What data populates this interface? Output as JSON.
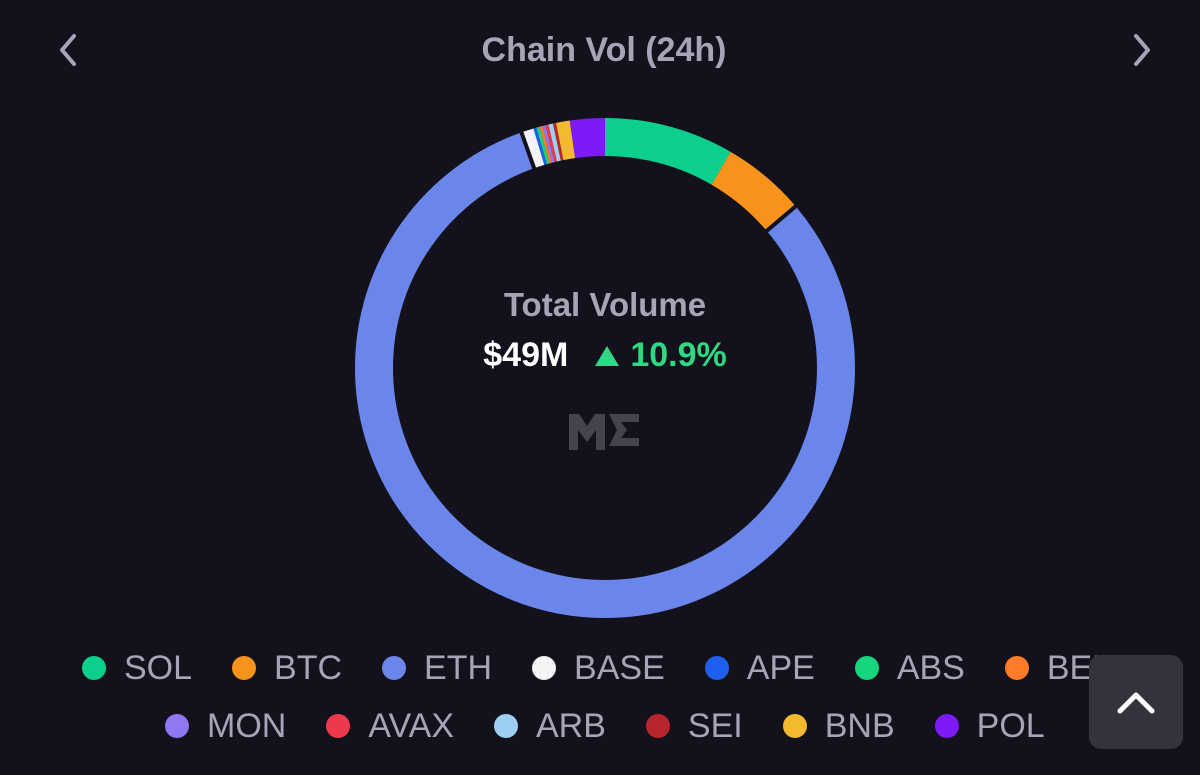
{
  "header": {
    "title": "Chain Vol (24h)"
  },
  "summary": {
    "label": "Total Volume",
    "value": "$49M",
    "change": "10.9%",
    "change_direction": "up",
    "change_color": "#2fd882"
  },
  "logo": {
    "icon": "magic-eden-logo"
  },
  "colors": {
    "background": "#13111c",
    "ring_gap": "#13111c"
  },
  "chart_data": {
    "type": "pie",
    "style": "donut",
    "categories": [
      "SOL",
      "BTC",
      "ETH",
      "BASE",
      "APE",
      "ABS",
      "BERA",
      "MON",
      "AVAX",
      "ARB",
      "SEI",
      "BNB",
      "POL"
    ],
    "values": [
      8.5,
      5.5,
      81.9,
      0.8,
      0.2,
      0.2,
      0.2,
      0.2,
      0.2,
      0.3,
      0.2,
      0.9,
      2.3
    ],
    "unit": "% of total volume",
    "colors": [
      "#0ccf8c",
      "#f7931a",
      "#6b86ea",
      "#f3f3f5",
      "#1f5ff0",
      "#15d67f",
      "#ff7a29",
      "#8f78f2",
      "#f0384c",
      "#9ccff0",
      "#b8262d",
      "#f3ba2f",
      "#7d1af5"
    ],
    "legend": [
      "SOL",
      "BTC",
      "ETH",
      "BASE",
      "APE",
      "ABS",
      "BERA",
      "MON",
      "AVAX",
      "ARB",
      "SEI",
      "BNB",
      "POL"
    ],
    "legend_position": "bottom"
  }
}
